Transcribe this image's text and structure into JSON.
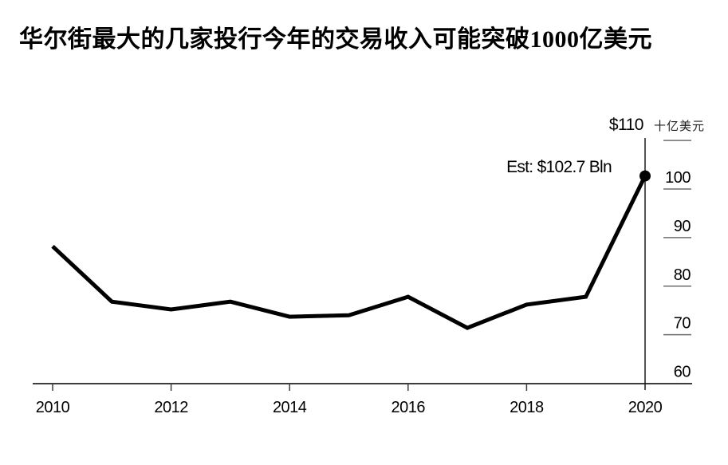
{
  "title": "华尔街最大的几家投行今年的交易收入可能突破1000亿美元",
  "annotations": {
    "top_axis_label": "$110",
    "unit_label": "十亿美元",
    "estimate_label": "Est: $102.7 Bln"
  },
  "chart_data": {
    "type": "line",
    "title": "华尔街最大的几家投行今年的交易收入可能突破1000亿美元",
    "x": [
      2010,
      2011,
      2012,
      2013,
      2014,
      2015,
      2016,
      2017,
      2018,
      2019,
      2020
    ],
    "series": [
      {
        "name": "交易收入 (十亿美元)",
        "values": [
          88.2,
          76.8,
          75.2,
          76.8,
          73.7,
          74.0,
          77.8,
          71.4,
          76.2,
          77.8,
          102.7
        ]
      }
    ],
    "estimate": {
      "year": 2020,
      "value": 102.7,
      "label": "Est: $102.7 Bln"
    },
    "xlabel": "",
    "ylabel": "十亿美元",
    "ylim": [
      60,
      110
    ],
    "xlim": [
      2010,
      2020
    ],
    "y_ticks": [
      110,
      100,
      90,
      80,
      70,
      60
    ],
    "y_tick_labels": [
      "$110",
      "100",
      "90",
      "80",
      "70",
      "60"
    ],
    "x_tick_years": [
      2010,
      2012,
      2014,
      2016,
      2018,
      2020
    ],
    "grid": false,
    "legend": "none",
    "axis_side": "right",
    "line_color": "#000000",
    "marker": "dot-on-last-point"
  },
  "colors": {
    "background": "#ffffff",
    "line": "#000000",
    "axis": "#3d3d3d",
    "tick_mark": "#6e6e6e",
    "text": "#000000",
    "unit_text": "#1f1f1f"
  }
}
